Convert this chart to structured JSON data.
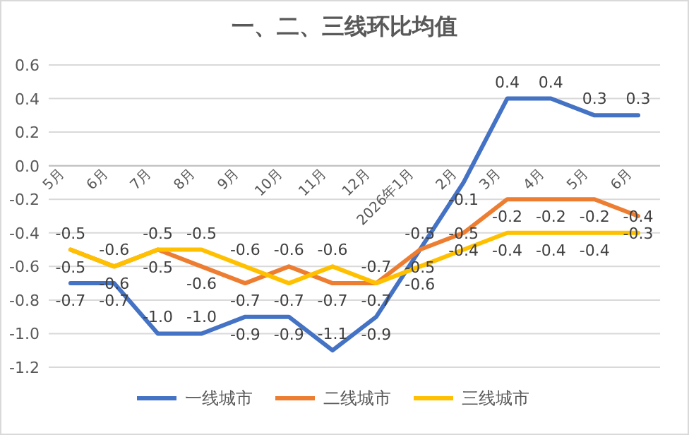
{
  "chart_data": {
    "type": "line",
    "title": "一、二、三线环比均值",
    "categories": [
      "5月",
      "6月",
      "7月",
      "8月",
      "9月",
      "10月",
      "11月",
      "12月",
      "2026年1月",
      "2月",
      "3月",
      "4月",
      "5月",
      "6月"
    ],
    "series": [
      {
        "name": "一线城市",
        "color": "#4472c4",
        "values": [
          -0.7,
          -0.7,
          -1.0,
          -1.0,
          -0.9,
          -0.9,
          -1.1,
          -0.9,
          -0.5,
          -0.1,
          0.4,
          0.4,
          0.3,
          0.3
        ],
        "value_labels": [
          "-0.7",
          "-0.7",
          "-1.0",
          "-1.0",
          "-0.9",
          "-0.9",
          "-1.1",
          "-0.9",
          "-0.5",
          "-0.1",
          "0.4",
          "0.4",
          "0.3",
          "0.3"
        ]
      },
      {
        "name": "二线城市",
        "color": "#ed7d31",
        "values": [
          -0.5,
          -0.6,
          -0.5,
          -0.6,
          -0.7,
          -0.6,
          -0.7,
          -0.7,
          -0.5,
          -0.4,
          -0.2,
          -0.2,
          -0.2,
          -0.3
        ],
        "value_labels": [
          "-0.5",
          "-0.6",
          "-0.5",
          "-0.6",
          "-0.7",
          "-0.6",
          "-0.7",
          "-0.7",
          "-0.5",
          "-0.4",
          "-0.2",
          "-0.2",
          "-0.2",
          "-0.3"
        ]
      },
      {
        "name": "三线城市",
        "color": "#ffc000",
        "values": [
          -0.5,
          -0.6,
          -0.5,
          -0.5,
          -0.6,
          -0.7,
          -0.6,
          -0.7,
          -0.6,
          -0.5,
          -0.4,
          -0.4,
          -0.4,
          -0.4
        ],
        "value_labels": [
          "-0.5",
          "-0.6",
          "-0.5",
          "-0.5",
          "-0.6",
          "-0.7",
          "-0.6",
          "-0.7",
          "-0.6",
          "-0.5",
          "-0.4",
          "-0.4",
          "-0.4",
          "-0.4"
        ]
      }
    ],
    "ylim": [
      -1.2,
      0.6
    ],
    "yticks": [
      {
        "value": -1.2,
        "label": "-1.2"
      },
      {
        "value": -1.0,
        "label": "-1.0"
      },
      {
        "value": -0.8,
        "label": "-0.8"
      },
      {
        "value": -0.6,
        "label": "-0.6"
      },
      {
        "value": -0.4,
        "label": "-0.4"
      },
      {
        "value": -0.2,
        "label": "-0.2"
      },
      {
        "value": 0.0,
        "label": "0.0"
      },
      {
        "value": 0.2,
        "label": "0.2"
      },
      {
        "value": 0.4,
        "label": "0.4"
      },
      {
        "value": 0.6,
        "label": "0.6"
      }
    ],
    "grid": "y",
    "legend": "bottom"
  }
}
